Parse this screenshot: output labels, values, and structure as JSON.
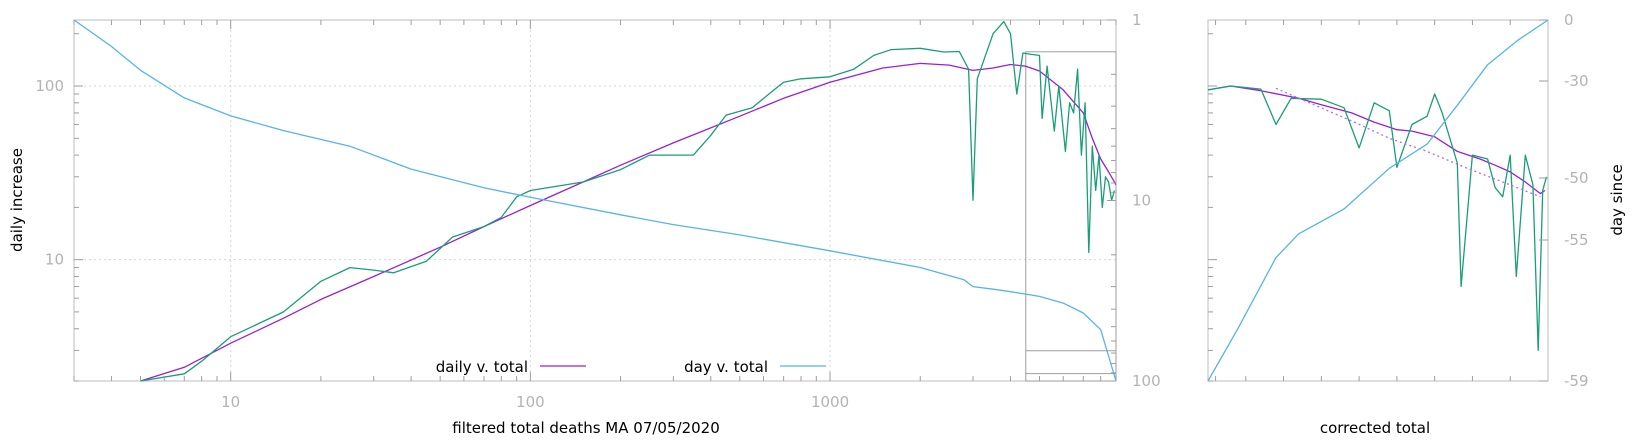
{
  "chart_data": [
    {
      "type": "line",
      "xlabel": "filtered total deaths MA 07/05/2020",
      "ylabel": "daily increase",
      "y2label": "",
      "x_scale": "log",
      "y_scale": "log",
      "y2_scale": "log",
      "y2_reversed": true,
      "xlim": [
        3,
        9000
      ],
      "ylim": [
        2,
        240
      ],
      "y2lim": [
        1,
        100
      ],
      "grid": true,
      "legend_position": "bottom-center",
      "x_ticks": [
        10,
        100,
        1000
      ],
      "x_tick_labels": [
        "10",
        "100",
        "1000"
      ],
      "y_ticks": [
        10,
        100
      ],
      "y_tick_labels": [
        "10",
        "100"
      ],
      "y2_ticks": [
        1,
        10,
        100
      ],
      "y2_tick_labels": [
        "1",
        "10",
        "100"
      ],
      "series": [
        {
          "name": "daily v. total",
          "color": "#9a1fd6",
          "axis": "left",
          "points": [
            [
              5,
              2
            ],
            [
              7,
              2.4
            ],
            [
              10,
              3.3
            ],
            [
              15,
              4.6
            ],
            [
              20,
              5.9
            ],
            [
              30,
              8
            ],
            [
              50,
              11.8
            ],
            [
              70,
              15.5
            ],
            [
              100,
              20.5
            ],
            [
              150,
              28
            ],
            [
              200,
              35
            ],
            [
              300,
              47
            ],
            [
              500,
              67
            ],
            [
              700,
              85
            ],
            [
              1000,
              105
            ],
            [
              1500,
              127
            ],
            [
              2000,
              135
            ],
            [
              2500,
              132
            ],
            [
              3000,
              123
            ],
            [
              3500,
              127
            ],
            [
              4000,
              133
            ],
            [
              4500,
              130
            ],
            [
              5000,
              122
            ],
            [
              6000,
              95
            ],
            [
              7000,
              70
            ],
            [
              7500,
              50
            ],
            [
              8000,
              38
            ],
            [
              8500,
              32
            ],
            [
              9000,
              27
            ]
          ]
        },
        {
          "name": "",
          "color": "#1a9e77",
          "axis": "left",
          "points": [
            [
              5,
              2
            ],
            [
              7,
              2.2
            ],
            [
              8,
              2.6
            ],
            [
              10,
              3.6
            ],
            [
              15,
              5
            ],
            [
              20,
              7.5
            ],
            [
              25,
              9
            ],
            [
              30,
              8.7
            ],
            [
              35,
              8.4
            ],
            [
              45,
              9.8
            ],
            [
              55,
              13.5
            ],
            [
              70,
              15.5
            ],
            [
              80,
              17.5
            ],
            [
              90,
              23
            ],
            [
              100,
              25
            ],
            [
              150,
              28
            ],
            [
              200,
              33
            ],
            [
              250,
              40
            ],
            [
              300,
              40
            ],
            [
              350,
              40
            ],
            [
              400,
              52
            ],
            [
              450,
              68
            ],
            [
              550,
              75
            ],
            [
              650,
              95
            ],
            [
              700,
              105
            ],
            [
              800,
              110
            ],
            [
              1000,
              113
            ],
            [
              1200,
              125
            ],
            [
              1400,
              150
            ],
            [
              1600,
              162
            ],
            [
              2000,
              165
            ],
            [
              2400,
              157
            ],
            [
              2700,
              158
            ],
            [
              2900,
              125
            ],
            [
              3000,
              22
            ],
            [
              3100,
              110
            ],
            [
              3500,
              200
            ],
            [
              3800,
              235
            ],
            [
              4000,
              200
            ],
            [
              4200,
              90
            ],
            [
              4400,
              155
            ],
            [
              4700,
              152
            ],
            [
              5000,
              150
            ],
            [
              5100,
              65
            ],
            [
              5300,
              130
            ],
            [
              5600,
              55
            ],
            [
              5800,
              100
            ],
            [
              6100,
              42
            ],
            [
              6300,
              80
            ],
            [
              6500,
              70
            ],
            [
              6700,
              125
            ],
            [
              6900,
              40
            ],
            [
              7100,
              80
            ],
            [
              7300,
              11
            ],
            [
              7500,
              45
            ],
            [
              7700,
              25
            ],
            [
              7900,
              40
            ],
            [
              8100,
              20
            ],
            [
              8300,
              30
            ],
            [
              8500,
              28
            ],
            [
              8700,
              22
            ],
            [
              8900,
              25
            ]
          ]
        },
        {
          "name": "day v. total",
          "color": "#56b4e9",
          "axis": "right",
          "points": [
            [
              3,
              1
            ],
            [
              4,
              1.4
            ],
            [
              5,
              1.9
            ],
            [
              7,
              2.7
            ],
            [
              10,
              3.4
            ],
            [
              15,
              4.1
            ],
            [
              25,
              5
            ],
            [
              40,
              6.7
            ],
            [
              70,
              8.5
            ],
            [
              100,
              9.6
            ],
            [
              200,
              12
            ],
            [
              300,
              13.6
            ],
            [
              500,
              15.5
            ],
            [
              1000,
              19
            ],
            [
              2000,
              23.5
            ],
            [
              2800,
              27.5
            ],
            [
              3000,
              30
            ],
            [
              3500,
              31
            ],
            [
              4000,
              32
            ],
            [
              5000,
              34
            ],
            [
              6000,
              37
            ],
            [
              7000,
              42
            ],
            [
              8000,
              52
            ],
            [
              9000,
              100
            ]
          ]
        }
      ],
      "inset_box": {
        "x_range": [
          4500,
          9000
        ],
        "y2_range": [
          1.5,
          100
        ]
      },
      "inset_box_line_y2": 68
    },
    {
      "type": "line",
      "xlabel": "corrected total",
      "ylabel": "",
      "y2label": "day since",
      "y2_ticks": [
        0,
        -30,
        -50,
        -55,
        -59
      ],
      "y2_tick_labels": [
        "0",
        "-30",
        "-50",
        "-55",
        "-59"
      ],
      "x_domain": [
        4500,
        9000
      ],
      "series": [
        {
          "name": "daily v. total",
          "color": "#9a1fd6",
          "points": [
            [
              4500,
              95
            ],
            [
              4800,
              100
            ],
            [
              5200,
              94
            ],
            [
              5700,
              85
            ],
            [
              6000,
              78
            ],
            [
              6400,
              70
            ],
            [
              6700,
              62
            ],
            [
              7000,
              56
            ],
            [
              7200,
              55
            ],
            [
              7500,
              51
            ],
            [
              7800,
              42
            ],
            [
              8100,
              38
            ],
            [
              8300,
              35
            ],
            [
              8500,
              32
            ],
            [
              8700,
              28
            ],
            [
              8900,
              24
            ],
            [
              8960,
              25
            ]
          ]
        },
        {
          "name": "",
          "color": "#1a9e77",
          "points": [
            [
              4500,
              95
            ],
            [
              4800,
              100
            ],
            [
              5200,
              96
            ],
            [
              5400,
              60
            ],
            [
              5600,
              85
            ],
            [
              6000,
              84
            ],
            [
              6300,
              75
            ],
            [
              6500,
              44
            ],
            [
              6700,
              80
            ],
            [
              6900,
              72
            ],
            [
              7000,
              34
            ],
            [
              7200,
              60
            ],
            [
              7400,
              67
            ],
            [
              7500,
              90
            ],
            [
              7600,
              70
            ],
            [
              7800,
              36
            ],
            [
              7850,
              7
            ],
            [
              8000,
              40
            ],
            [
              8200,
              38
            ],
            [
              8300,
              26
            ],
            [
              8400,
              23
            ],
            [
              8500,
              40
            ],
            [
              8580,
              8
            ],
            [
              8700,
              40
            ],
            [
              8800,
              27
            ],
            [
              8870,
              3
            ],
            [
              8930,
              25
            ],
            [
              8980,
              30
            ]
          ]
        },
        {
          "name": "",
          "color": "#b866f0",
          "dashed": true,
          "points": [
            [
              5400,
              97
            ],
            [
              5900,
              78
            ],
            [
              6400,
              63
            ],
            [
              6900,
              50
            ],
            [
              7400,
              42
            ],
            [
              7900,
              34
            ],
            [
              8400,
              28
            ],
            [
              8900,
              23
            ]
          ]
        },
        {
          "name": "day v. total",
          "color": "#56b4e9",
          "points": [
            [
              4500,
              -59
            ],
            [
              4900,
              -57.5
            ],
            [
              5400,
              -55.5
            ],
            [
              5700,
              -54.5
            ],
            [
              6300,
              -52.5
            ],
            [
              6900,
              -48
            ],
            [
              7400,
              -43
            ],
            [
              7800,
              -35
            ],
            [
              8200,
              -22
            ],
            [
              8600,
              -10
            ],
            [
              9000,
              0
            ]
          ]
        }
      ]
    }
  ]
}
